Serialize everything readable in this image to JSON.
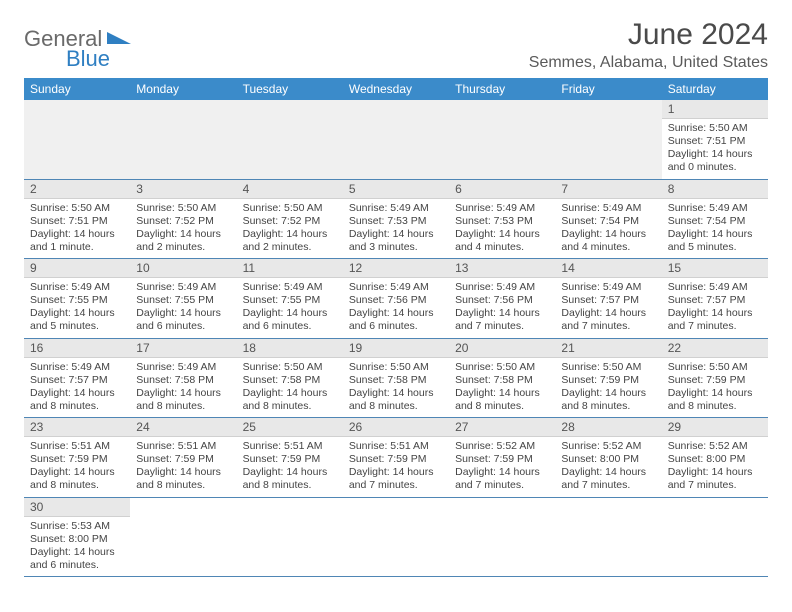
{
  "colors": {
    "header_bg": "#3b8bca",
    "header_text": "#ffffff",
    "daynum_bg": "#e8e8e8",
    "row_divider": "#4f86b5",
    "text": "#444444",
    "title_text": "#4a4a4a",
    "logo_gray": "#6a6a6a",
    "logo_blue": "#2f7fc2"
  },
  "logo": {
    "part1": "General",
    "part2": "Blue"
  },
  "title": "June 2024",
  "location": "Semmes, Alabama, United States",
  "day_headers": [
    "Sunday",
    "Monday",
    "Tuesday",
    "Wednesday",
    "Thursday",
    "Friday",
    "Saturday"
  ],
  "weeks": [
    [
      null,
      null,
      null,
      null,
      null,
      null,
      {
        "n": "1",
        "sunrise": "Sunrise: 5:50 AM",
        "sunset": "Sunset: 7:51 PM",
        "daylight1": "Daylight: 14 hours",
        "daylight2": "and 0 minutes."
      }
    ],
    [
      {
        "n": "2",
        "sunrise": "Sunrise: 5:50 AM",
        "sunset": "Sunset: 7:51 PM",
        "daylight1": "Daylight: 14 hours",
        "daylight2": "and 1 minute."
      },
      {
        "n": "3",
        "sunrise": "Sunrise: 5:50 AM",
        "sunset": "Sunset: 7:52 PM",
        "daylight1": "Daylight: 14 hours",
        "daylight2": "and 2 minutes."
      },
      {
        "n": "4",
        "sunrise": "Sunrise: 5:50 AM",
        "sunset": "Sunset: 7:52 PM",
        "daylight1": "Daylight: 14 hours",
        "daylight2": "and 2 minutes."
      },
      {
        "n": "5",
        "sunrise": "Sunrise: 5:49 AM",
        "sunset": "Sunset: 7:53 PM",
        "daylight1": "Daylight: 14 hours",
        "daylight2": "and 3 minutes."
      },
      {
        "n": "6",
        "sunrise": "Sunrise: 5:49 AM",
        "sunset": "Sunset: 7:53 PM",
        "daylight1": "Daylight: 14 hours",
        "daylight2": "and 4 minutes."
      },
      {
        "n": "7",
        "sunrise": "Sunrise: 5:49 AM",
        "sunset": "Sunset: 7:54 PM",
        "daylight1": "Daylight: 14 hours",
        "daylight2": "and 4 minutes."
      },
      {
        "n": "8",
        "sunrise": "Sunrise: 5:49 AM",
        "sunset": "Sunset: 7:54 PM",
        "daylight1": "Daylight: 14 hours",
        "daylight2": "and 5 minutes."
      }
    ],
    [
      {
        "n": "9",
        "sunrise": "Sunrise: 5:49 AM",
        "sunset": "Sunset: 7:55 PM",
        "daylight1": "Daylight: 14 hours",
        "daylight2": "and 5 minutes."
      },
      {
        "n": "10",
        "sunrise": "Sunrise: 5:49 AM",
        "sunset": "Sunset: 7:55 PM",
        "daylight1": "Daylight: 14 hours",
        "daylight2": "and 6 minutes."
      },
      {
        "n": "11",
        "sunrise": "Sunrise: 5:49 AM",
        "sunset": "Sunset: 7:55 PM",
        "daylight1": "Daylight: 14 hours",
        "daylight2": "and 6 minutes."
      },
      {
        "n": "12",
        "sunrise": "Sunrise: 5:49 AM",
        "sunset": "Sunset: 7:56 PM",
        "daylight1": "Daylight: 14 hours",
        "daylight2": "and 6 minutes."
      },
      {
        "n": "13",
        "sunrise": "Sunrise: 5:49 AM",
        "sunset": "Sunset: 7:56 PM",
        "daylight1": "Daylight: 14 hours",
        "daylight2": "and 7 minutes."
      },
      {
        "n": "14",
        "sunrise": "Sunrise: 5:49 AM",
        "sunset": "Sunset: 7:57 PM",
        "daylight1": "Daylight: 14 hours",
        "daylight2": "and 7 minutes."
      },
      {
        "n": "15",
        "sunrise": "Sunrise: 5:49 AM",
        "sunset": "Sunset: 7:57 PM",
        "daylight1": "Daylight: 14 hours",
        "daylight2": "and 7 minutes."
      }
    ],
    [
      {
        "n": "16",
        "sunrise": "Sunrise: 5:49 AM",
        "sunset": "Sunset: 7:57 PM",
        "daylight1": "Daylight: 14 hours",
        "daylight2": "and 8 minutes."
      },
      {
        "n": "17",
        "sunrise": "Sunrise: 5:49 AM",
        "sunset": "Sunset: 7:58 PM",
        "daylight1": "Daylight: 14 hours",
        "daylight2": "and 8 minutes."
      },
      {
        "n": "18",
        "sunrise": "Sunrise: 5:50 AM",
        "sunset": "Sunset: 7:58 PM",
        "daylight1": "Daylight: 14 hours",
        "daylight2": "and 8 minutes."
      },
      {
        "n": "19",
        "sunrise": "Sunrise: 5:50 AM",
        "sunset": "Sunset: 7:58 PM",
        "daylight1": "Daylight: 14 hours",
        "daylight2": "and 8 minutes."
      },
      {
        "n": "20",
        "sunrise": "Sunrise: 5:50 AM",
        "sunset": "Sunset: 7:58 PM",
        "daylight1": "Daylight: 14 hours",
        "daylight2": "and 8 minutes."
      },
      {
        "n": "21",
        "sunrise": "Sunrise: 5:50 AM",
        "sunset": "Sunset: 7:59 PM",
        "daylight1": "Daylight: 14 hours",
        "daylight2": "and 8 minutes."
      },
      {
        "n": "22",
        "sunrise": "Sunrise: 5:50 AM",
        "sunset": "Sunset: 7:59 PM",
        "daylight1": "Daylight: 14 hours",
        "daylight2": "and 8 minutes."
      }
    ],
    [
      {
        "n": "23",
        "sunrise": "Sunrise: 5:51 AM",
        "sunset": "Sunset: 7:59 PM",
        "daylight1": "Daylight: 14 hours",
        "daylight2": "and 8 minutes."
      },
      {
        "n": "24",
        "sunrise": "Sunrise: 5:51 AM",
        "sunset": "Sunset: 7:59 PM",
        "daylight1": "Daylight: 14 hours",
        "daylight2": "and 8 minutes."
      },
      {
        "n": "25",
        "sunrise": "Sunrise: 5:51 AM",
        "sunset": "Sunset: 7:59 PM",
        "daylight1": "Daylight: 14 hours",
        "daylight2": "and 8 minutes."
      },
      {
        "n": "26",
        "sunrise": "Sunrise: 5:51 AM",
        "sunset": "Sunset: 7:59 PM",
        "daylight1": "Daylight: 14 hours",
        "daylight2": "and 7 minutes."
      },
      {
        "n": "27",
        "sunrise": "Sunrise: 5:52 AM",
        "sunset": "Sunset: 7:59 PM",
        "daylight1": "Daylight: 14 hours",
        "daylight2": "and 7 minutes."
      },
      {
        "n": "28",
        "sunrise": "Sunrise: 5:52 AM",
        "sunset": "Sunset: 8:00 PM",
        "daylight1": "Daylight: 14 hours",
        "daylight2": "and 7 minutes."
      },
      {
        "n": "29",
        "sunrise": "Sunrise: 5:52 AM",
        "sunset": "Sunset: 8:00 PM",
        "daylight1": "Daylight: 14 hours",
        "daylight2": "and 7 minutes."
      }
    ],
    [
      {
        "n": "30",
        "sunrise": "Sunrise: 5:53 AM",
        "sunset": "Sunset: 8:00 PM",
        "daylight1": "Daylight: 14 hours",
        "daylight2": "and 6 minutes."
      },
      null,
      null,
      null,
      null,
      null,
      null
    ]
  ]
}
